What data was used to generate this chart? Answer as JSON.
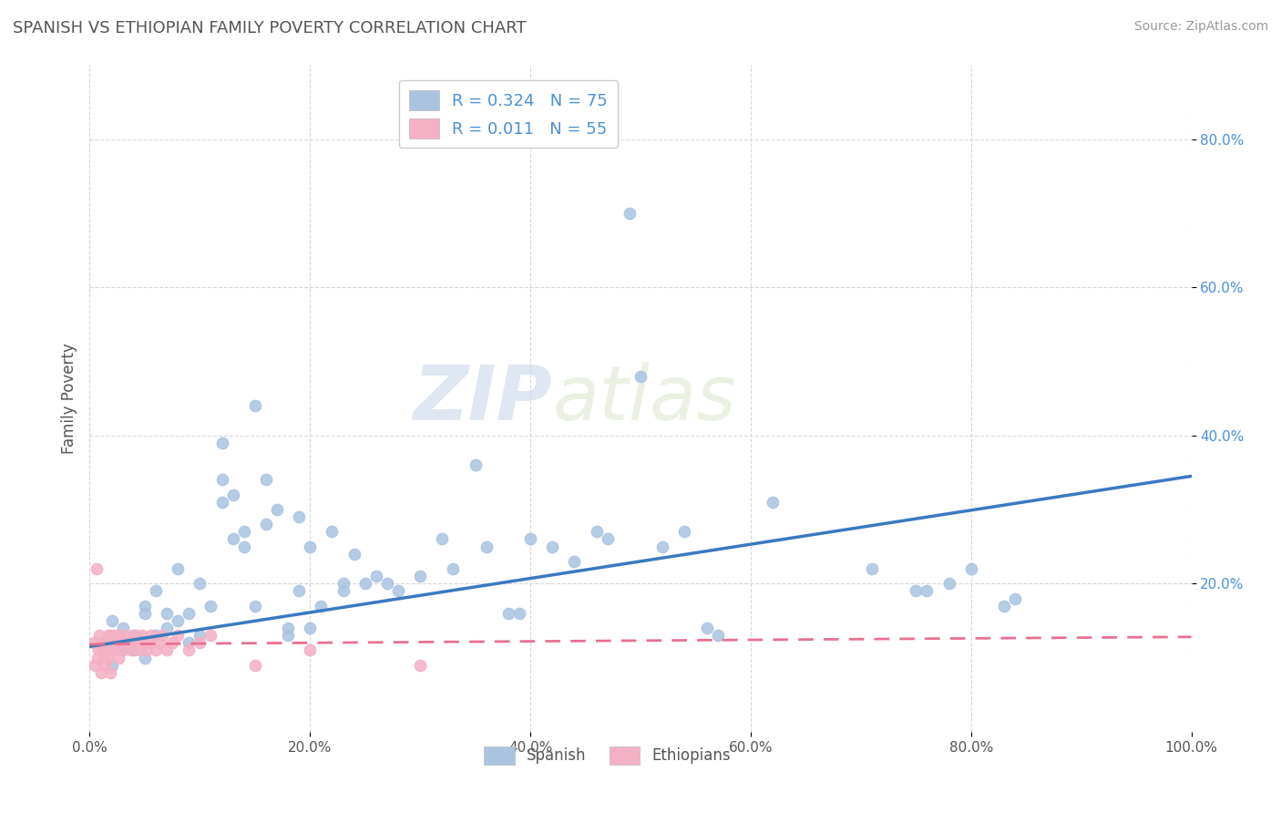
{
  "title": "SPANISH VS ETHIOPIAN FAMILY POVERTY CORRELATION CHART",
  "source": "Source: ZipAtlas.com",
  "ylabel": "Family Poverty",
  "xlim": [
    0,
    1.0
  ],
  "ylim": [
    0,
    0.9
  ],
  "xtick_labels": [
    "0.0%",
    "20.0%",
    "40.0%",
    "60.0%",
    "80.0%",
    "100.0%"
  ],
  "xtick_vals": [
    0.0,
    0.2,
    0.4,
    0.6,
    0.8,
    1.0
  ],
  "ytick_labels": [
    "20.0%",
    "40.0%",
    "60.0%",
    "80.0%"
  ],
  "ytick_vals": [
    0.2,
    0.4,
    0.6,
    0.8
  ],
  "legend_R_spanish": "R = 0.324",
  "legend_N_spanish": "N = 75",
  "legend_R_ethiopian": "R = 0.011",
  "legend_N_ethiopian": "N = 55",
  "spanish_color": "#aac4e0",
  "ethiopian_color": "#f4b0c4",
  "spanish_line_color": "#3a7abf",
  "ethiopian_line_color": "#e87090",
  "background_color": "#ffffff",
  "grid_color": "#cccccc",
  "watermark_zip": "ZIP",
  "watermark_atlas": "atlas",
  "spanish_trend_start": 0.115,
  "spanish_trend_end": 0.345,
  "ethiopian_trend_start": 0.118,
  "ethiopian_trend_end": 0.128,
  "spanish_points": [
    [
      0.01,
      0.12
    ],
    [
      0.02,
      0.09
    ],
    [
      0.02,
      0.15
    ],
    [
      0.03,
      0.11
    ],
    [
      0.03,
      0.14
    ],
    [
      0.04,
      0.11
    ],
    [
      0.04,
      0.13
    ],
    [
      0.04,
      0.12
    ],
    [
      0.05,
      0.1
    ],
    [
      0.05,
      0.17
    ],
    [
      0.05,
      0.16
    ],
    [
      0.06,
      0.13
    ],
    [
      0.06,
      0.19
    ],
    [
      0.07,
      0.14
    ],
    [
      0.07,
      0.16
    ],
    [
      0.08,
      0.15
    ],
    [
      0.08,
      0.22
    ],
    [
      0.09,
      0.12
    ],
    [
      0.09,
      0.16
    ],
    [
      0.1,
      0.2
    ],
    [
      0.1,
      0.13
    ],
    [
      0.11,
      0.17
    ],
    [
      0.12,
      0.39
    ],
    [
      0.12,
      0.34
    ],
    [
      0.12,
      0.31
    ],
    [
      0.13,
      0.32
    ],
    [
      0.13,
      0.26
    ],
    [
      0.14,
      0.25
    ],
    [
      0.14,
      0.27
    ],
    [
      0.15,
      0.44
    ],
    [
      0.15,
      0.17
    ],
    [
      0.16,
      0.34
    ],
    [
      0.16,
      0.28
    ],
    [
      0.17,
      0.3
    ],
    [
      0.18,
      0.14
    ],
    [
      0.18,
      0.13
    ],
    [
      0.19,
      0.29
    ],
    [
      0.19,
      0.19
    ],
    [
      0.2,
      0.25
    ],
    [
      0.2,
      0.14
    ],
    [
      0.21,
      0.17
    ],
    [
      0.22,
      0.27
    ],
    [
      0.23,
      0.2
    ],
    [
      0.23,
      0.19
    ],
    [
      0.24,
      0.24
    ],
    [
      0.25,
      0.2
    ],
    [
      0.26,
      0.21
    ],
    [
      0.27,
      0.2
    ],
    [
      0.28,
      0.19
    ],
    [
      0.3,
      0.21
    ],
    [
      0.32,
      0.26
    ],
    [
      0.33,
      0.22
    ],
    [
      0.35,
      0.36
    ],
    [
      0.36,
      0.25
    ],
    [
      0.38,
      0.16
    ],
    [
      0.39,
      0.16
    ],
    [
      0.4,
      0.26
    ],
    [
      0.42,
      0.25
    ],
    [
      0.44,
      0.23
    ],
    [
      0.46,
      0.27
    ],
    [
      0.47,
      0.26
    ],
    [
      0.49,
      0.7
    ],
    [
      0.5,
      0.48
    ],
    [
      0.52,
      0.25
    ],
    [
      0.54,
      0.27
    ],
    [
      0.56,
      0.14
    ],
    [
      0.57,
      0.13
    ],
    [
      0.62,
      0.31
    ],
    [
      0.71,
      0.22
    ],
    [
      0.75,
      0.19
    ],
    [
      0.76,
      0.19
    ],
    [
      0.78,
      0.2
    ],
    [
      0.8,
      0.22
    ],
    [
      0.83,
      0.17
    ],
    [
      0.84,
      0.18
    ]
  ],
  "ethiopian_points": [
    [
      0.004,
      0.12
    ],
    [
      0.005,
      0.09
    ],
    [
      0.006,
      0.22
    ],
    [
      0.007,
      0.1
    ],
    [
      0.008,
      0.11
    ],
    [
      0.009,
      0.13
    ],
    [
      0.01,
      0.08
    ],
    [
      0.011,
      0.12
    ],
    [
      0.012,
      0.11
    ],
    [
      0.013,
      0.1
    ],
    [
      0.014,
      0.12
    ],
    [
      0.014,
      0.09
    ],
    [
      0.015,
      0.11
    ],
    [
      0.016,
      0.1
    ],
    [
      0.017,
      0.13
    ],
    [
      0.018,
      0.12
    ],
    [
      0.018,
      0.11
    ],
    [
      0.019,
      0.13
    ],
    [
      0.019,
      0.08
    ],
    [
      0.02,
      0.12
    ],
    [
      0.021,
      0.13
    ],
    [
      0.022,
      0.11
    ],
    [
      0.022,
      0.12
    ],
    [
      0.023,
      0.11
    ],
    [
      0.024,
      0.12
    ],
    [
      0.025,
      0.13
    ],
    [
      0.026,
      0.1
    ],
    [
      0.027,
      0.12
    ],
    [
      0.028,
      0.13
    ],
    [
      0.03,
      0.11
    ],
    [
      0.032,
      0.12
    ],
    [
      0.034,
      0.13
    ],
    [
      0.036,
      0.12
    ],
    [
      0.038,
      0.11
    ],
    [
      0.04,
      0.12
    ],
    [
      0.042,
      0.13
    ],
    [
      0.044,
      0.12
    ],
    [
      0.046,
      0.11
    ],
    [
      0.048,
      0.13
    ],
    [
      0.05,
      0.12
    ],
    [
      0.052,
      0.11
    ],
    [
      0.054,
      0.12
    ],
    [
      0.056,
      0.13
    ],
    [
      0.06,
      0.11
    ],
    [
      0.063,
      0.12
    ],
    [
      0.066,
      0.13
    ],
    [
      0.07,
      0.11
    ],
    [
      0.075,
      0.12
    ],
    [
      0.08,
      0.13
    ],
    [
      0.09,
      0.11
    ],
    [
      0.1,
      0.12
    ],
    [
      0.11,
      0.13
    ],
    [
      0.15,
      0.09
    ],
    [
      0.2,
      0.11
    ],
    [
      0.3,
      0.09
    ]
  ]
}
